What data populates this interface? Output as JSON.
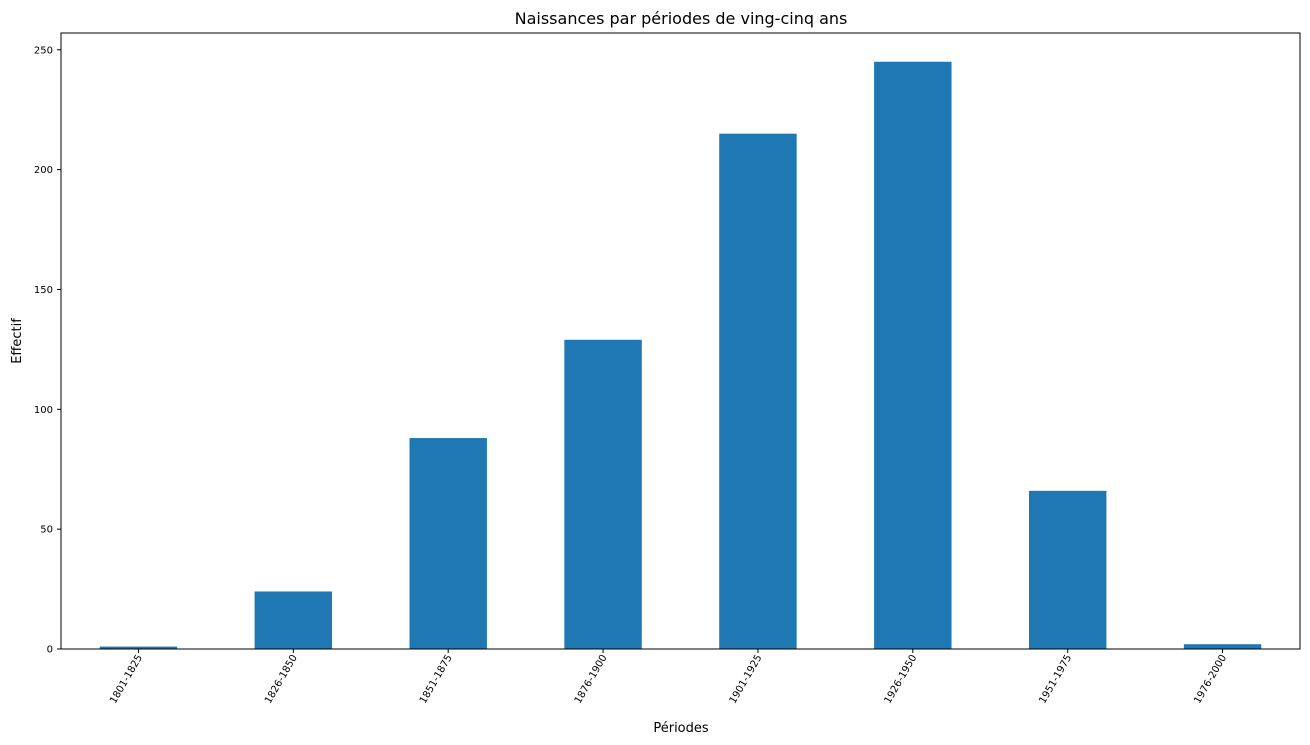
{
  "chart_data": {
    "type": "bar",
    "title": "Naissances par périodes de ving-cinq ans",
    "xlabel": "Périodes",
    "ylabel": "Effectif",
    "categories": [
      "1801-1825",
      "1826-1850",
      "1851-1875",
      "1876-1900",
      "1901-1925",
      "1926-1950",
      "1951-1975",
      "1976-2000"
    ],
    "values": [
      1,
      24,
      88,
      129,
      215,
      245,
      66,
      2
    ],
    "ylim": [
      0,
      257
    ],
    "yticks": [
      0,
      50,
      100,
      150,
      200,
      250
    ],
    "ytick_labels": [
      "0",
      "50",
      "100",
      "150",
      "200",
      "250"
    ],
    "bar_color": "#1f77b4",
    "grid": false,
    "legend": "none"
  }
}
